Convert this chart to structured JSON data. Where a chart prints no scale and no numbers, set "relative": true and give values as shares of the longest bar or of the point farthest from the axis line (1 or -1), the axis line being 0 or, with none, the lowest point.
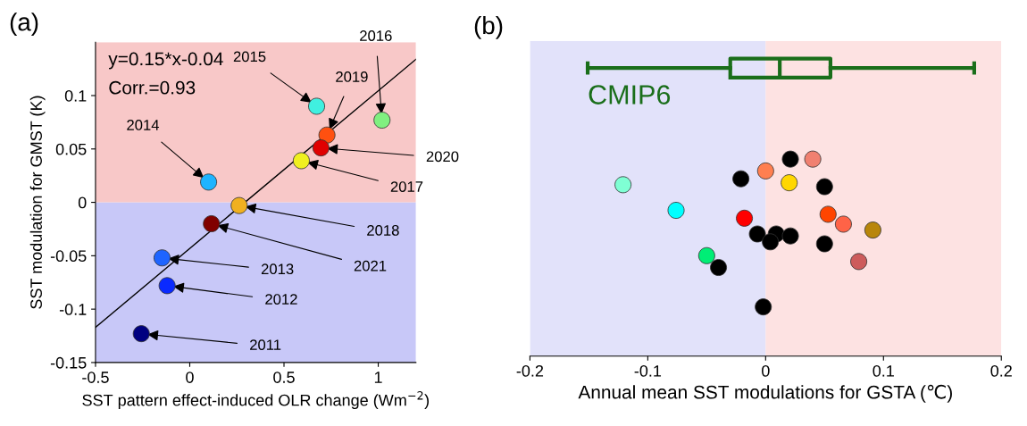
{
  "chart_data": [
    {
      "type": "scatter",
      "title": "(a)",
      "xlabel": "SST pattern effect-induced OLR change (Wm$^{−2}$)",
      "ylabel": "SST modulation for GMST (K)",
      "xlim": [
        -0.5,
        1.2
      ],
      "xticks": [
        -0.5,
        0,
        0.5,
        1
      ],
      "ylim": [
        -0.15,
        0.15
      ],
      "yticks": [
        -0.15,
        -0.1,
        -0.05,
        0,
        0.05,
        0.1
      ],
      "grid": false,
      "legend": false,
      "marker": "circle",
      "bands": [
        {
          "axis": "y",
          "from": -0.15,
          "to": 0,
          "color": "#c8c8f8"
        },
        {
          "axis": "y",
          "from": 0,
          "to": 0.15,
          "color": "#f8c8c8"
        }
      ],
      "series": [
        {
          "type": "line",
          "color": "#000000",
          "marker": "none",
          "x": [
            -0.5,
            1.2
          ],
          "values": [
            -0.117,
            0.134
          ]
        },
        {
          "x": [
            -0.257,
            -0.12,
            -0.147,
            0.1,
            0.673,
            1.02,
            0.592,
            0.262,
            0.728,
            0.696,
            0.115
          ],
          "values": [
            -0.123,
            -0.078,
            -0.052,
            0.019,
            0.09,
            0.077,
            0.039,
            -0.003,
            0.063,
            0.051,
            -0.02
          ],
          "colors": [
            "#000080",
            "#0a2aff",
            "#1e64ff",
            "#1eb4ff",
            "#40f0e0",
            "#80f080",
            "#f0f020",
            "#f0b020",
            "#ff5010",
            "#e00000",
            "#800000"
          ]
        }
      ],
      "annotations": [
        "y=0.15*x-0.04",
        "Corr.=0.93",
        {
          "text": "2011",
          "x": -0.257,
          "y": -0.123
        },
        {
          "text": "2012",
          "x": -0.12,
          "y": -0.078
        },
        {
          "text": "2013",
          "x": -0.147,
          "y": -0.052
        },
        {
          "text": "2014",
          "x": 0.1,
          "y": 0.019
        },
        {
          "text": "2015",
          "x": 0.673,
          "y": 0.09
        },
        {
          "text": "2016",
          "x": 1.02,
          "y": 0.077
        },
        {
          "text": "2017",
          "x": 0.592,
          "y": 0.039
        },
        {
          "text": "2018",
          "x": 0.262,
          "y": -0.003
        },
        {
          "text": "2019",
          "x": 0.728,
          "y": 0.063
        },
        {
          "text": "2020",
          "x": 0.696,
          "y": 0.051
        },
        {
          "text": "2021",
          "x": 0.115,
          "y": -0.02
        }
      ]
    },
    {
      "type": "box",
      "title": "(b)",
      "orientation": "horizontal",
      "categories": [
        "CMIP6"
      ],
      "xlim": [
        -0.2,
        0.2
      ],
      "xticks": [
        -0.2,
        -0.1,
        0,
        0.1,
        0.2
      ],
      "tick_labels": false,
      "grid": false,
      "legend": false,
      "series": [
        {
          "color": "#1a6e1a",
          "boxes": [
            {
              "low": -0.151,
              "q1": -0.03,
              "median": 0.012,
              "q3": 0.055,
              "high": 0.177
            }
          ]
        }
      ]
    },
    {
      "type": "scatter",
      "xlabel": "Annual mean SST modulations for GSTA (℃)",
      "relative": true,
      "xlim": [
        -0.2,
        0.2
      ],
      "xticks": [
        -0.2,
        -0.1,
        0,
        0.1,
        0.2
      ],
      "grid": false,
      "legend": false,
      "marker": "circle",
      "tick_labels": "x",
      "bands": [
        {
          "axis": "x",
          "from": -0.2,
          "to": 0,
          "color": "#e2e2fa"
        },
        {
          "axis": "x",
          "from": 0,
          "to": 0.2,
          "color": "#fde2e2"
        }
      ],
      "series": [
        {
          "x": [
            0.04,
            0.0,
            0.02,
            -0.121,
            -0.076,
            -0.018,
            0.053,
            0.066,
            0.091,
            -0.05,
            0.079
          ],
          "values": [
            1,
            0.94,
            0.88,
            0.87,
            0.74,
            0.7,
            0.72,
            0.67,
            0.64,
            0.51,
            0.48
          ],
          "colors": [
            "#f08070",
            "#ff7f50",
            "#ffd700",
            "#7fffd4",
            "#00ffff",
            "#ff0000",
            "#ff4500",
            "#ff6347",
            "#b8860b",
            "#00ee76",
            "#cd5c5c"
          ]
        },
        {
          "color": "#000000",
          "x": [
            0.021,
            -0.021,
            0.05,
            -0.007,
            0.009,
            0.021,
            0.004,
            0.05,
            -0.04,
            -0.002
          ],
          "values": [
            1,
            0.9,
            0.86,
            0.62,
            0.62,
            0.61,
            0.58,
            0.57,
            0.45,
            0.25
          ]
        }
      ]
    }
  ]
}
